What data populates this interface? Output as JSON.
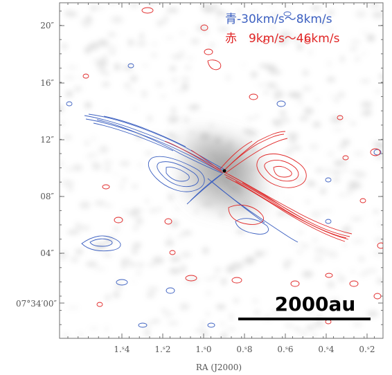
{
  "figure": {
    "legend": {
      "blue_label": "青-30km/s〜8km/s",
      "red_label": "赤　9km/s〜46km/s"
    },
    "scale_bar": {
      "label": "2000au"
    },
    "axes": {
      "x_title": "RA (J2000)",
      "x_ticks": [
        "1.ˢ4",
        "1.ˢ2",
        "1.ˢ0",
        "0.ˢ8",
        "0.ˢ6",
        "0.ˢ4",
        "0.ˢ2"
      ],
      "y_ticks": [
        "20″",
        "16″",
        "12″",
        "08″",
        "04″",
        "07°34′00″"
      ]
    },
    "colors": {
      "blue_contours": "#3b5fc0",
      "red_contours": "#e02424",
      "background_emission": "#9a9a9a"
    }
  }
}
